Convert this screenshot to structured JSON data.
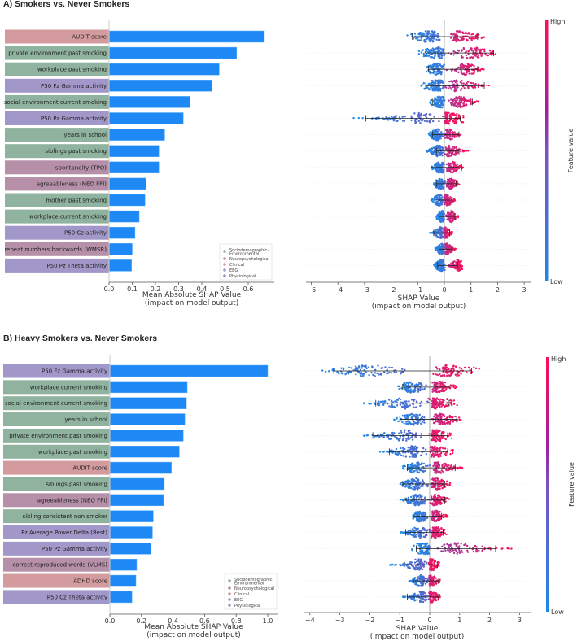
{
  "panels": [
    {
      "title": "A) Smokers vs. Never Smokers",
      "bar_xlabel_1": "Mean Absolute SHAP Value",
      "bar_xlabel_2": "(impact on model output)",
      "bee_xlabel_1": "SHAP Value",
      "bee_xlabel_2": "(impact on model output)",
      "colorbar": {
        "high": "High",
        "low": "Low",
        "label": "Feature value"
      }
    },
    {
      "title": "B) Heavy Smokers vs. Never Smokers",
      "bar_xlabel_1": "Mean Absolute SHAP Value",
      "bar_xlabel_2": "(impact on model output)",
      "bee_xlabel_1": "SHAP Value",
      "bee_xlabel_2": "(impact on model output)",
      "colorbar": {
        "high": "High",
        "low": "Low",
        "label": "Feature value"
      }
    }
  ],
  "legend": {
    "items": [
      {
        "name": "Sociodemographic-Environmental",
        "lines": [
          "Sociodemographic-",
          "Environmental"
        ],
        "color": "#8fb39e"
      },
      {
        "name": "Neuropsychological",
        "lines": [
          "Neuropsychological"
        ],
        "color": "#b690a8"
      },
      {
        "name": "Clinical",
        "lines": [
          "Clinical"
        ],
        "color": "#d39b9e"
      },
      {
        "name": "EEG",
        "lines": [
          "EEG"
        ],
        "color": "#a197c9"
      },
      {
        "name": "Physiological",
        "lines": [
          "Physiological"
        ],
        "color": "#8f9dc2"
      }
    ]
  },
  "colors": {
    "bar": "#1e88f5",
    "shap_low": "#1e88e5",
    "shap_high": "#ff0d57",
    "category": {
      "Sociodemographic-Environmental": "#8fb39e",
      "Neuropsychological": "#b690a8",
      "Clinical": "#d39b9e",
      "EEG": "#a197c9",
      "Physiological": "#8f9dc2"
    }
  },
  "chart_data": [
    {
      "type": "bar",
      "panel": "A) Smokers vs. Never Smokers",
      "orientation": "horizontal",
      "title": "",
      "xlabel": "Mean Absolute SHAP Value\n(impact on model output)",
      "xlim": [
        0,
        0.7
      ],
      "xticks": [
        0.0,
        0.1,
        0.2,
        0.3,
        0.4,
        0.5,
        0.6
      ],
      "xtick_labels": [
        "0.0",
        "0.1",
        "0.2",
        "0.3",
        "0.4",
        "0.5",
        "0.6"
      ],
      "legend_position": "bottom-right",
      "categories": [
        "AUDIT score",
        "private environment past smoking",
        "workplace past smoking",
        "P50 Fz Gamma activity",
        "social environment current smoking",
        "P50 Pz Gamma activity",
        "years in school",
        "siblings past smoking",
        "spontaneity (TPQ)",
        "agreeableness (NEO FFI)",
        "mother past smoking",
        "workplace current smoking",
        "P50 Cz activity",
        "repeat numbers backwards (WMSR)",
        "P50 Pz Theta activity"
      ],
      "feature_groups": [
        "Clinical",
        "Sociodemographic-Environmental",
        "Sociodemographic-Environmental",
        "EEG",
        "Sociodemographic-Environmental",
        "EEG",
        "Sociodemographic-Environmental",
        "Sociodemographic-Environmental",
        "Neuropsychological",
        "Neuropsychological",
        "Sociodemographic-Environmental",
        "Sociodemographic-Environmental",
        "EEG",
        "Neuropsychological",
        "EEG"
      ],
      "values": [
        0.67,
        0.55,
        0.475,
        0.445,
        0.35,
        0.32,
        0.24,
        0.215,
        0.215,
        0.16,
        0.155,
        0.13,
        0.112,
        0.1,
        0.097
      ]
    },
    {
      "type": "scatter",
      "subtype": "beeswarm",
      "panel": "A) Smokers vs. Never Smokers",
      "xlabel": "SHAP Value\n(impact on model output)",
      "xlim": [
        -5.15,
        3.25
      ],
      "xticks": [
        -5,
        -4,
        -3,
        -2,
        -1,
        0,
        1,
        2,
        3
      ],
      "xtick_labels": [
        "−5",
        "−4",
        "−3",
        "−2",
        "−1",
        "0",
        "1",
        "2",
        "3"
      ],
      "colorbar": {
        "label": "Feature value",
        "low": "Low",
        "high": "High"
      },
      "categories": [
        "AUDIT score",
        "private environment past smoking",
        "workplace past smoking",
        "P50 Fz Gamma activity",
        "social environment current smoking",
        "P50 Pz Gamma activity",
        "years in school",
        "siblings past smoking",
        "spontaneity (TPQ)",
        "agreeableness (NEO FFI)",
        "mother past smoking",
        "workplace current smoking",
        "P50 Cz activity",
        "repeat numbers backwards (WMSR)",
        "P50 Pz Theta activity"
      ],
      "ranges": [
        {
          "min": -1.4,
          "max": 1.5,
          "whisker_low": -1.2,
          "whisker_high": 1.25,
          "low_peak": -0.6,
          "high_peak": 0.6
        },
        {
          "min": -1.1,
          "max": 2.2,
          "whisker_low": -0.7,
          "whisker_high": 1.85,
          "low_peak": -0.25,
          "high_peak": 1.0
        },
        {
          "min": -0.75,
          "max": 1.5,
          "whisker_low": -0.6,
          "whisker_high": 1.25,
          "low_peak": -0.25,
          "high_peak": 0.8
        },
        {
          "min": -0.95,
          "max": 1.9,
          "whisker_low": -0.7,
          "whisker_high": 1.5,
          "low_peak": -0.25,
          "high_peak": 0.5
        },
        {
          "min": -0.55,
          "max": 1.3,
          "whisker_low": -0.45,
          "whisker_high": 1.05,
          "low_peak": -0.15,
          "high_peak": 0.6
        },
        {
          "min": -3.45,
          "max": 0.8,
          "whisker_low": -2.95,
          "whisker_high": 0.6,
          "low_peak": -1.0,
          "high_peak": 0.1
        },
        {
          "min": -0.6,
          "max": 0.7,
          "whisker_low": -0.45,
          "whisker_high": 0.55,
          "low_peak": -0.25,
          "high_peak": 0.15
        },
        {
          "min": -0.75,
          "max": 0.9,
          "whisker_low": -0.3,
          "whisker_high": 0.55,
          "low_peak": -0.2,
          "high_peak": 0.2
        },
        {
          "min": -0.5,
          "max": 0.7,
          "whisker_low": -0.5,
          "whisker_high": 0.65,
          "low_peak": -0.15,
          "high_peak": 0.3
        },
        {
          "min": -0.4,
          "max": 0.6,
          "whisker_low": -0.3,
          "whisker_high": 0.45,
          "low_peak": -0.15,
          "high_peak": 0.25
        },
        {
          "min": -0.5,
          "max": 0.45,
          "whisker_low": -0.35,
          "whisker_high": 0.3,
          "low_peak": -0.2,
          "high_peak": 0.1
        },
        {
          "min": -0.3,
          "max": 0.55,
          "whisker_low": -0.2,
          "whisker_high": 0.4,
          "low_peak": -0.1,
          "high_peak": 0.25
        },
        {
          "min": -0.55,
          "max": 0.3,
          "whisker_low": -0.4,
          "whisker_high": 0.2,
          "low_peak": -0.15,
          "high_peak": 0.05
        },
        {
          "min": -0.35,
          "max": 0.45,
          "whisker_low": -0.2,
          "whisker_high": 0.3,
          "low_peak": -0.1,
          "high_peak": 0.1
        },
        {
          "min": -0.4,
          "max": 0.7,
          "whisker_low": -0.25,
          "whisker_high": 0.5,
          "low_peak": -0.1,
          "high_peak": 0.5
        }
      ]
    },
    {
      "type": "bar",
      "panel": "B) Heavy Smokers vs. Never Smokers",
      "orientation": "horizontal",
      "title": "",
      "xlabel": "Mean Absolute SHAP Value\n(impact on model output)",
      "xlim": [
        0,
        1.06
      ],
      "xticks": [
        0.0,
        0.2,
        0.4,
        0.6,
        0.8,
        1.0
      ],
      "xtick_labels": [
        "0.0",
        "0.2",
        "0.4",
        "0.6",
        "0.8",
        "1.0"
      ],
      "legend_position": "bottom-right",
      "categories": [
        "P50 Fz Gamma activity",
        "workplace current smoking",
        "social environment current smoking",
        "years in school",
        "private environment past smoking",
        "workplace past smoking",
        "AUDIT score",
        "siblings past smoking",
        "agreeableness (NEO FFI)",
        "sibling consistent non smoker",
        "Fz Average Power Delta (Rest)",
        "P50 Pz Gamma activity",
        "correct reproduced words (VLMS)",
        "ADHD score",
        "P50 Cz Theta activity"
      ],
      "feature_groups": [
        "EEG",
        "Sociodemographic-Environmental",
        "Sociodemographic-Environmental",
        "Sociodemographic-Environmental",
        "Sociodemographic-Environmental",
        "Sociodemographic-Environmental",
        "Clinical",
        "Sociodemographic-Environmental",
        "Neuropsychological",
        "Sociodemographic-Environmental",
        "EEG",
        "EEG",
        "Neuropsychological",
        "Clinical",
        "EEG"
      ],
      "values": [
        1.0,
        0.49,
        0.485,
        0.475,
        0.465,
        0.44,
        0.39,
        0.345,
        0.34,
        0.275,
        0.27,
        0.26,
        0.17,
        0.165,
        0.14
      ]
    },
    {
      "type": "scatter",
      "subtype": "beeswarm",
      "panel": "B) Heavy Smokers vs. Never Smokers",
      "xlabel": "SHAP Value\n(impact on model output)",
      "xlim": [
        -4.1,
        3.35
      ],
      "xticks": [
        -4,
        -3,
        -2,
        -1,
        0,
        1,
        2,
        3
      ],
      "xtick_labels": [
        "−4",
        "−3",
        "−2",
        "−1",
        "0",
        "1",
        "2",
        "3"
      ],
      "colorbar": {
        "label": "Feature value",
        "low": "Low",
        "high": "High"
      },
      "categories": [
        "P50 Fz Gamma activity",
        "workplace current smoking",
        "social environment current smoking",
        "years in school",
        "private environment past smoking",
        "workplace past smoking",
        "AUDIT score",
        "siblings past smoking",
        "agreeableness (NEO FFI)",
        "sibling consistent non smoker",
        "Fz Average Power Delta (Rest)",
        "P50 Pz Gamma activity",
        "correct reproduced words (VLMS)",
        "ADHD score",
        "P50 Cz Theta activity"
      ],
      "ranges": [
        {
          "min": -3.85,
          "max": 1.65,
          "whisker_low": -3.2,
          "whisker_high": 1.4,
          "low_peak": -2.0,
          "high_peak": 0.6
        },
        {
          "min": -1.1,
          "max": 0.9,
          "whisker_low": -0.9,
          "whisker_high": 0.75,
          "low_peak": -0.55,
          "high_peak": 0.3
        },
        {
          "min": -2.25,
          "max": 1.0,
          "whisker_low": -1.8,
          "whisker_high": 0.65,
          "low_peak": -0.9,
          "high_peak": 0.2
        },
        {
          "min": -1.2,
          "max": 1.15,
          "whisker_low": -1.0,
          "whisker_high": 0.9,
          "low_peak": -0.55,
          "high_peak": 0.4
        },
        {
          "min": -2.3,
          "max": 0.8,
          "whisker_low": -1.9,
          "whisker_high": 0.6,
          "low_peak": -0.9,
          "high_peak": 0.2
        },
        {
          "min": -1.7,
          "max": 0.8,
          "whisker_low": -1.35,
          "whisker_high": 0.6,
          "low_peak": -0.6,
          "high_peak": 0.2
        },
        {
          "min": -0.9,
          "max": 1.1,
          "whisker_low": -0.75,
          "whisker_high": 0.85,
          "low_peak": -0.4,
          "high_peak": 0.3
        },
        {
          "min": -1.05,
          "max": 0.75,
          "whisker_low": -0.9,
          "whisker_high": 0.5,
          "low_peak": -0.45,
          "high_peak": 0.2
        },
        {
          "min": -1.0,
          "max": 0.65,
          "whisker_low": -0.85,
          "whisker_high": 0.5,
          "low_peak": -0.4,
          "high_peak": 0.2
        },
        {
          "min": -0.6,
          "max": 0.6,
          "whisker_low": -0.55,
          "whisker_high": 0.4,
          "low_peak": -0.3,
          "high_peak": 0.2
        },
        {
          "min": -1.0,
          "max": 0.6,
          "whisker_low": -0.8,
          "whisker_high": 0.45,
          "low_peak": -0.35,
          "high_peak": 0.2
        },
        {
          "min": -0.6,
          "max": 3.05,
          "whisker_low": -0.45,
          "whisker_high": 2.2,
          "low_peak": -0.15,
          "high_peak": 1.0
        },
        {
          "min": -1.4,
          "max": 0.35,
          "whisker_low": -0.85,
          "whisker_high": 0.25,
          "low_peak": -0.4,
          "high_peak": 0.05
        },
        {
          "min": -0.7,
          "max": 0.35,
          "whisker_low": -0.55,
          "whisker_high": 0.3,
          "low_peak": -0.3,
          "high_peak": 0.05
        },
        {
          "min": -0.9,
          "max": 0.35,
          "whisker_low": -0.75,
          "whisker_high": 0.3,
          "low_peak": -0.3,
          "high_peak": 0.05
        }
      ]
    }
  ]
}
